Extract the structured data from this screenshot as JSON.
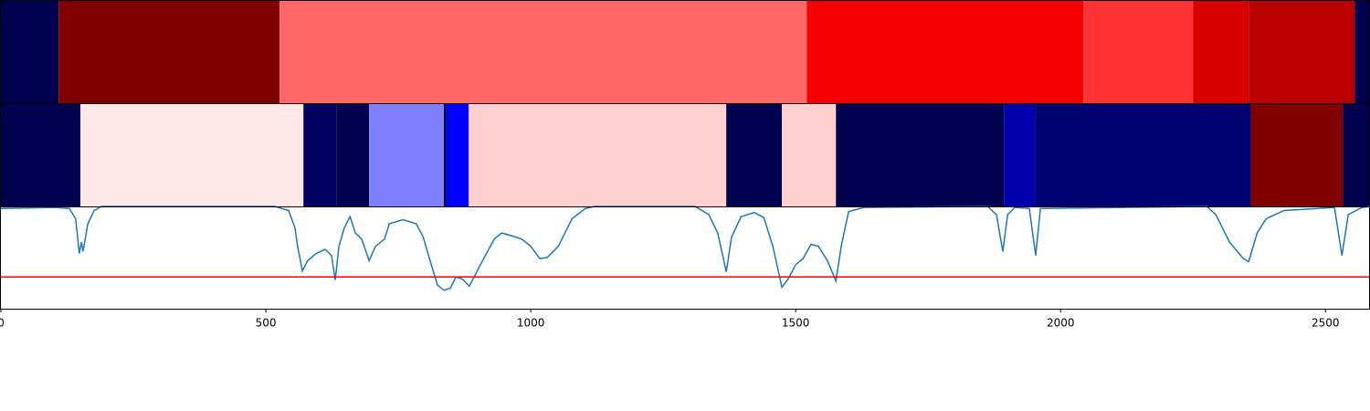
{
  "chart_data": [
    {
      "type": "segments",
      "xlim": [
        0,
        2584
      ],
      "bins": [
        0,
        109,
        526,
        1521,
        2043,
        2250,
        2355,
        2555,
        2584
      ],
      "colors": [
        "#00004f",
        "#800000",
        "#ff6666",
        "#f50000",
        "#ff3333",
        "#d90000",
        "#bb0000",
        "#00004f"
      ]
    },
    {
      "type": "segments",
      "xlim": [
        0,
        2584
      ],
      "bins": [
        0,
        150,
        571,
        634,
        695,
        836,
        841,
        883,
        1369,
        1474,
        1576,
        1893,
        1953,
        2359,
        2533,
        2584
      ],
      "colors": [
        "#00004f",
        "#ffe8e8",
        "#00005f",
        "#00004f",
        "#8080ff",
        "#00004f",
        "#0000ff",
        "#ffd0d0",
        "#00004f",
        "#ffd0d0",
        "#00004f",
        "#0000aa",
        "#00006f",
        "#800000",
        "#00004f"
      ]
    },
    {
      "type": "line",
      "xlim": [
        0,
        2584
      ],
      "ylim": [
        0,
        1
      ],
      "xticks": [
        0,
        500,
        1000,
        1500,
        2000,
        2500
      ],
      "threshold": 0.31,
      "threshold_color": "#ff0000",
      "x": [
        0,
        103,
        129,
        141,
        148,
        152,
        155,
        164,
        176,
        190,
        517,
        543,
        555,
        560,
        569,
        579,
        595,
        612,
        624,
        631,
        638,
        648,
        659,
        669,
        681,
        695,
        707,
        724,
        733,
        759,
        784,
        797,
        810,
        824,
        836,
        848,
        859,
        871,
        884,
        905,
        931,
        945,
        966,
        983,
        1000,
        1017,
        1031,
        1052,
        1078,
        1103,
        1121,
        1310,
        1336,
        1353,
        1369,
        1379,
        1397,
        1422,
        1440,
        1457,
        1474,
        1486,
        1500,
        1514,
        1529,
        1543,
        1560,
        1576,
        1586,
        1600,
        1629,
        1862,
        1879,
        1891,
        1900,
        1914,
        1941,
        1953,
        1962,
        2276,
        2293,
        2319,
        2345,
        2355,
        2371,
        2388,
        2422,
        2517,
        2531,
        2543,
        2569,
        2584
      ],
      "series": [
        {
          "color": "#1f77b4",
          "values": [
            0.98,
            0.99,
            0.98,
            0.88,
            0.54,
            0.65,
            0.56,
            0.83,
            0.96,
            1.0,
            1.0,
            0.96,
            0.79,
            0.61,
            0.37,
            0.47,
            0.54,
            0.58,
            0.52,
            0.28,
            0.61,
            0.79,
            0.9,
            0.74,
            0.68,
            0.47,
            0.61,
            0.68,
            0.83,
            0.87,
            0.83,
            0.7,
            0.47,
            0.23,
            0.18,
            0.2,
            0.31,
            0.29,
            0.22,
            0.43,
            0.68,
            0.74,
            0.71,
            0.68,
            0.61,
            0.49,
            0.5,
            0.61,
            0.88,
            0.98,
            1.0,
            1.0,
            0.92,
            0.74,
            0.36,
            0.7,
            0.9,
            0.94,
            0.89,
            0.61,
            0.21,
            0.29,
            0.43,
            0.49,
            0.63,
            0.61,
            0.47,
            0.27,
            0.61,
            0.95,
            0.99,
            1.0,
            0.92,
            0.56,
            0.92,
            0.99,
            0.98,
            0.52,
            0.98,
            1.0,
            0.92,
            0.65,
            0.49,
            0.46,
            0.74,
            0.88,
            0.96,
            0.99,
            0.52,
            0.92,
            0.99,
            1.0
          ]
        }
      ]
    }
  ]
}
